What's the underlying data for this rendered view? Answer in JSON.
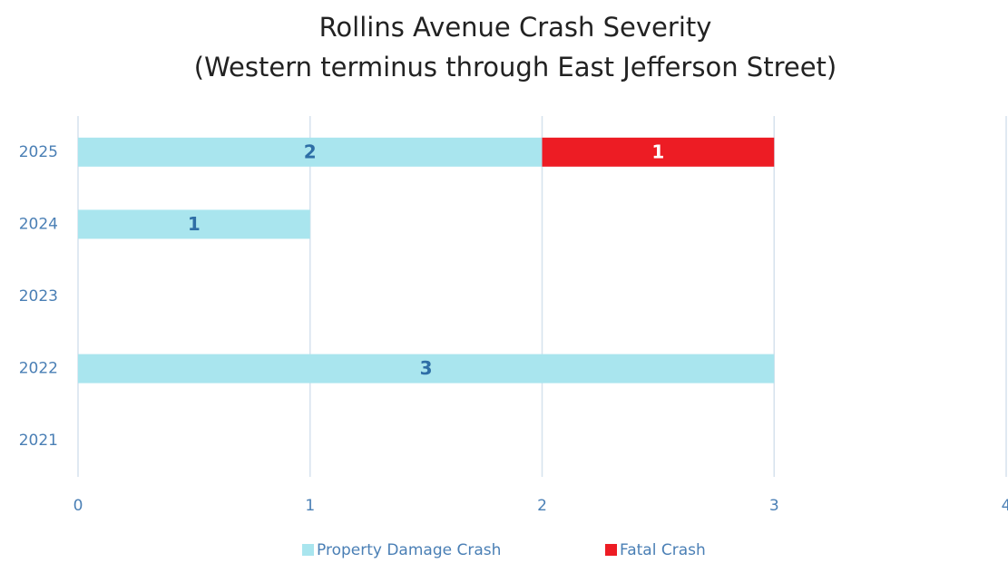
{
  "chart_data": {
    "type": "hbar_stacked",
    "title": "Rollins Avenue Crash Severity",
    "subtitle": "(Western terminus through East Jefferson Street)",
    "categories": [
      "2025",
      "2024",
      "2023",
      "2022",
      "2021"
    ],
    "series": [
      {
        "name": "Property Damage Crash",
        "color": "#a9e5ee",
        "values": [
          2,
          1,
          null,
          3,
          null
        ]
      },
      {
        "name": "Fatal Crash",
        "color": "#ed1c24",
        "values": [
          1,
          null,
          null,
          null,
          null
        ]
      }
    ],
    "xlim": [
      0,
      4
    ],
    "xticks": [
      0,
      1,
      2,
      3,
      4
    ],
    "grid": true,
    "legend": "bottom"
  }
}
